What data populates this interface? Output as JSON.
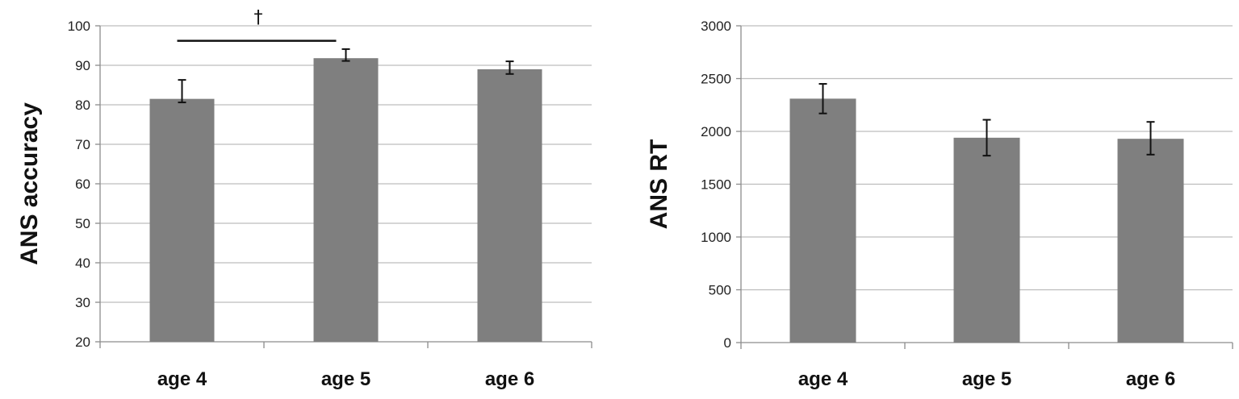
{
  "chart_data": [
    {
      "type": "bar",
      "categories": [
        "age 4",
        "age 5",
        "age 6"
      ],
      "values": [
        81.5,
        91.8,
        89.0
      ],
      "errors": [
        [
          80.6,
          86.3
        ],
        [
          91.1,
          94.1
        ],
        [
          87.8,
          91.0
        ]
      ],
      "ylabel": "ANS accuracy",
      "xlabel": "",
      "ylim": [
        20,
        100
      ],
      "yticks": [
        "20",
        "30",
        "40",
        "50",
        "60",
        "70",
        "80",
        "90",
        "100"
      ],
      "grid": true,
      "bar_color": "#7f7f7f",
      "annotation": {
        "text": "†",
        "from_category": "age 4",
        "to_category": "age 5",
        "y": 96.2
      }
    },
    {
      "type": "bar",
      "categories": [
        "age 4",
        "age 5",
        "age 6"
      ],
      "values": [
        2310,
        1940,
        1930
      ],
      "errors": [
        [
          2170,
          2450
        ],
        [
          1770,
          2110
        ],
        [
          1780,
          2090
        ]
      ],
      "ylabel": "ANS RT",
      "xlabel": "",
      "ylim": [
        0,
        3000
      ],
      "yticks": [
        "0",
        "500",
        "1000",
        "1500",
        "2000",
        "2500",
        "3000"
      ],
      "grid": true,
      "bar_color": "#7f7f7f"
    }
  ]
}
